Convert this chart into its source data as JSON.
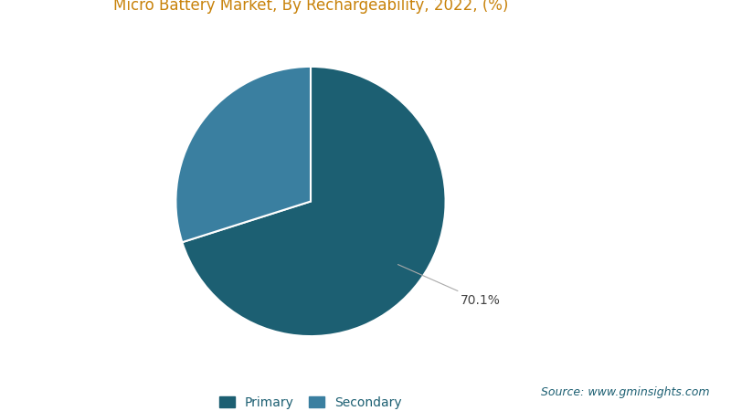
{
  "title": "Micro Battery Market, By Rechargeability, 2022, (%)",
  "title_color": "#c8820a",
  "title_fontsize": 12,
  "slices": [
    70.1,
    29.9
  ],
  "labels": [
    "Primary",
    "Secondary"
  ],
  "colors": [
    "#1c5f72",
    "#3a7fa0"
  ],
  "annotation_label": "70.1%",
  "annotation_color": "#444444",
  "wedge_edge_color": "white",
  "wedge_linewidth": 1.5,
  "legend_fontsize": 10,
  "legend_text_color": "#1c5f72",
  "source_text": "Source: www.gminsights.com",
  "source_color": "#1c5f72",
  "source_fontsize": 9,
  "background_color": "#ffffff"
}
